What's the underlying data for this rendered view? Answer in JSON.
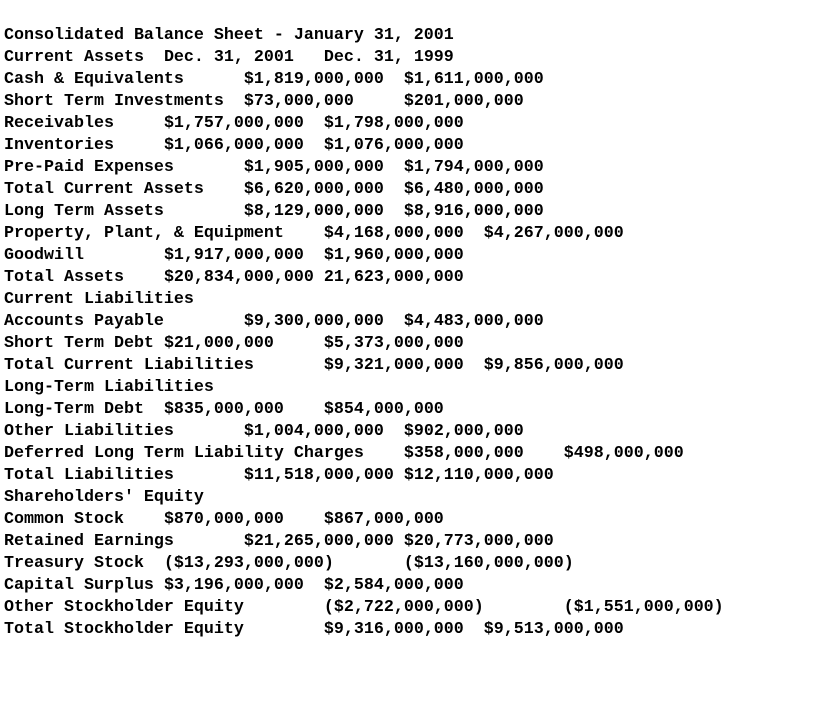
{
  "title": "Consolidated Balance Sheet - January 31, 2001",
  "rows": [
    [
      "Current Assets",
      "Dec. 31, 2001",
      "Dec. 31, 1999"
    ],
    [
      "Cash & Equivalents",
      "$1,819,000,000",
      "$1,611,000,000"
    ],
    [
      "Short Term Investments",
      "$73,000,000",
      "$201,000,000"
    ],
    [
      "Receivables",
      "$1,757,000,000",
      "$1,798,000,000"
    ],
    [
      "Inventories",
      "$1,066,000,000",
      "$1,076,000,000"
    ],
    [
      "Pre-Paid Expenses",
      "$1,905,000,000",
      "$1,794,000,000"
    ],
    [
      "Total Current Assets",
      "$6,620,000,000",
      "$6,480,000,000"
    ],
    [
      "Long Term Assets",
      "$8,129,000,000",
      "$8,916,000,000"
    ],
    [
      "Property, Plant, & Equipment",
      "$4,168,000,000",
      "$4,267,000,000"
    ],
    [
      "Goodwill",
      "$1,917,000,000",
      "$1,960,000,000"
    ],
    [
      "Total Assets",
      "$20,834,000,000",
      "21,623,000,000"
    ],
    [
      "Current Liabilities"
    ],
    [
      "Accounts Payable",
      "$9,300,000,000",
      "$4,483,000,000"
    ],
    [
      "Short Term Debt",
      "$21,000,000",
      "$5,373,000,000"
    ],
    [
      "Total Current Liabilities",
      "$9,321,000,000",
      "$9,856,000,000"
    ],
    [
      "Long-Term Liabilities"
    ],
    [
      "Long-Term Debt",
      "$835,000,000",
      "$854,000,000"
    ],
    [
      "Other Liabilities",
      "$1,004,000,000",
      "$902,000,000"
    ],
    [
      "Deferred Long Term Liability Charges",
      "$358,000,000",
      "$498,000,000"
    ],
    [
      "Total Liabilities",
      "$11,518,000,000",
      "$12,110,000,000"
    ],
    [
      "Shareholders' Equity"
    ],
    [
      "Common Stock",
      "$870,000,000",
      "$867,000,000"
    ],
    [
      "Retained Earnings",
      "$21,265,000,000",
      "$20,773,000,000"
    ],
    [
      "Treasury Stock",
      "($13,293,000,000)",
      "($13,160,000,000)"
    ],
    [
      "Capital Surplus",
      "$3,196,000,000",
      "$2,584,000,000"
    ],
    [
      "Other Stockholder Equity",
      "($2,722,000,000)",
      "($1,551,000,000)"
    ],
    [
      "Total Stockholder Equity",
      "$9,316,000,000",
      "$9,513,000,000"
    ]
  ]
}
